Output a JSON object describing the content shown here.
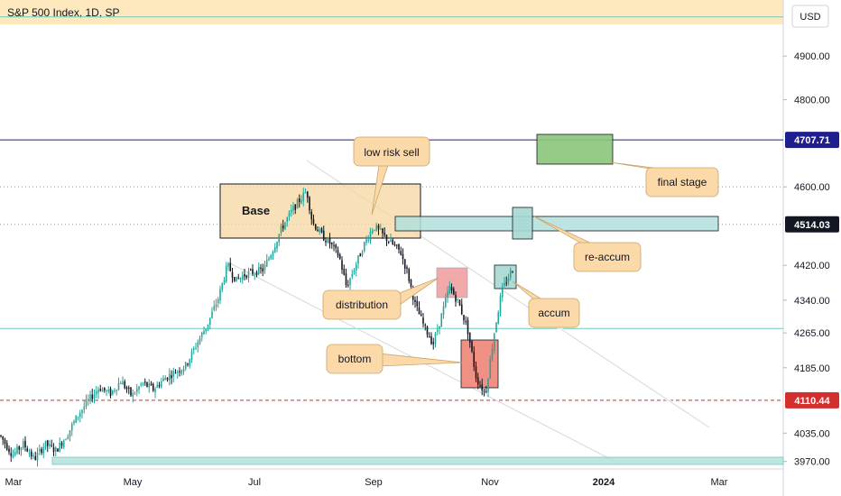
{
  "header": {
    "title": "S&P 500 Index, 1D, SP",
    "currency_button": "USD"
  },
  "chart_data": {
    "type": "candlestick",
    "title": "S&P 500 Index, 1D, SP",
    "ylim": [
      3955,
      5020
    ],
    "y_ticks": [
      3970.0,
      4035.0,
      4185.0,
      4265.0,
      4340.0,
      4420.0,
      4600.0,
      4800.0,
      4900.0
    ],
    "x_ticks": [
      "Mar",
      "May",
      "Jul",
      "Sep",
      "Nov",
      "2024",
      "Mar"
    ],
    "price_tags": [
      {
        "label": "4707.71",
        "value": 4707.71,
        "color": "#1e1e8f"
      },
      {
        "label": "4514.03",
        "value": 4514.03,
        "color": "#131722"
      },
      {
        "label": "4110.44",
        "value": 4110.44,
        "color": "#d32f2f"
      }
    ],
    "horizontal_levels": [
      {
        "value": 4990,
        "style": "solid",
        "color": "#6fc9c1"
      },
      {
        "value": 4707.71,
        "style": "solid",
        "color": "#1e1e8f"
      },
      {
        "value": 4600,
        "style": "dotted",
        "color": "#9e9e9e"
      },
      {
        "value": 4514.03,
        "style": "dotted",
        "color": "#9e9e9e"
      },
      {
        "value": 4275,
        "style": "solid",
        "color": "#6fc9c1"
      },
      {
        "value": 4110.44,
        "style": "dashed",
        "color": "#d32f2f"
      }
    ],
    "series_shape": [
      [
        0,
        4030
      ],
      [
        14,
        3985
      ],
      [
        26,
        4010
      ],
      [
        38,
        3975
      ],
      [
        50,
        4010
      ],
      [
        62,
        3995
      ],
      [
        74,
        4030
      ],
      [
        86,
        4075
      ],
      [
        98,
        4110
      ],
      [
        110,
        4140
      ],
      [
        122,
        4125
      ],
      [
        134,
        4155
      ],
      [
        146,
        4120
      ],
      [
        158,
        4150
      ],
      [
        170,
        4135
      ],
      [
        182,
        4160
      ],
      [
        194,
        4175
      ],
      [
        206,
        4190
      ],
      [
        218,
        4240
      ],
      [
        230,
        4285
      ],
      [
        242,
        4345
      ],
      [
        252,
        4420
      ],
      [
        262,
        4385
      ],
      [
        272,
        4400
      ],
      [
        282,
        4405
      ],
      [
        292,
        4410
      ],
      [
        302,
        4455
      ],
      [
        312,
        4505
      ],
      [
        322,
        4540
      ],
      [
        332,
        4570
      ],
      [
        340,
        4590
      ],
      [
        346,
        4520
      ],
      [
        356,
        4490
      ],
      [
        366,
        4470
      ],
      [
        376,
        4440
      ],
      [
        384,
        4370
      ],
      [
        394,
        4420
      ],
      [
        404,
        4470
      ],
      [
        414,
        4510
      ],
      [
        424,
        4490
      ],
      [
        434,
        4470
      ],
      [
        444,
        4450
      ],
      [
        452,
        4400
      ],
      [
        460,
        4330
      ],
      [
        470,
        4280
      ],
      [
        480,
        4240
      ],
      [
        490,
        4310
      ],
      [
        498,
        4370
      ],
      [
        508,
        4335
      ],
      [
        518,
        4275
      ],
      [
        528,
        4160
      ],
      [
        538,
        4125
      ],
      [
        548,
        4270
      ],
      [
        556,
        4360
      ],
      [
        566,
        4405
      ],
      [
        576,
        4430
      ]
    ],
    "annotations": [
      {
        "label": "Base",
        "type": "zone"
      },
      {
        "label": "low risk sell",
        "type": "callout"
      },
      {
        "label": "distribution",
        "type": "callout"
      },
      {
        "label": "bottom",
        "type": "callout"
      },
      {
        "label": "accum",
        "type": "callout"
      },
      {
        "label": "re-accum",
        "type": "callout"
      },
      {
        "label": "final stage",
        "type": "callout"
      }
    ],
    "colors": {
      "up": "#26a69a",
      "down": "#131722",
      "background": "#ffffff",
      "top_band": "#fde9bd"
    },
    "grid": false
  }
}
